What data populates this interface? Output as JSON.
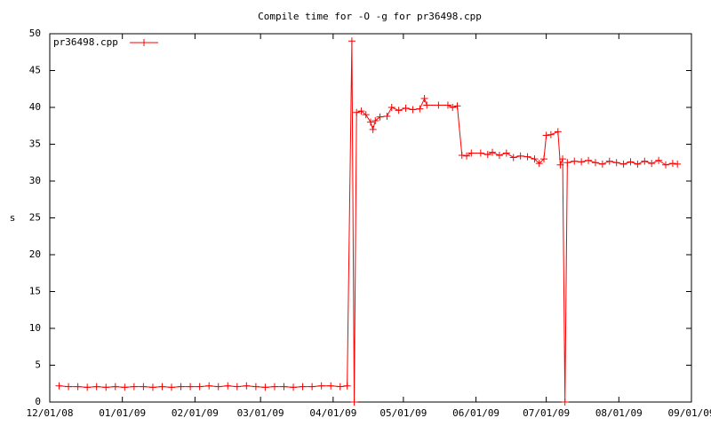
{
  "chart_data": {
    "type": "line",
    "title": "Compile time for -O -g for pr36498.cpp",
    "y_label": "s",
    "x": [
      "12/05/08",
      "12/09/08",
      "12/13/08",
      "12/17/08",
      "12/21/08",
      "12/25/08",
      "12/29/08",
      "01/02/09",
      "01/06/09",
      "01/10/09",
      "01/14/09",
      "01/18/09",
      "01/22/09",
      "01/26/09",
      "01/30/09",
      "02/03/09",
      "02/07/09",
      "02/11/09",
      "02/15/09",
      "02/19/09",
      "02/23/09",
      "02/27/09",
      "03/03/09",
      "03/07/09",
      "03/11/09",
      "03/15/09",
      "03/19/09",
      "03/23/09",
      "03/27/09",
      "03/31/09",
      "04/04/09",
      "04/07/09",
      "04/09/09",
      "04/10/09",
      "04/11/09",
      "04/13/09",
      "04/15/09",
      "04/17/09",
      "04/18/09",
      "04/19/09",
      "04/21/09",
      "04/24/09",
      "04/26/09",
      "04/29/09",
      "05/02/09",
      "05/05/09",
      "05/08/09",
      "05/10/09",
      "05/11/09",
      "05/16/09",
      "05/20/09",
      "05/22/09",
      "05/24/09",
      "05/26/09",
      "05/28/09",
      "05/30/09",
      "06/03/09",
      "06/06/09",
      "06/08/09",
      "06/11/09",
      "06/14/09",
      "06/17/09",
      "06/20/09",
      "06/23/09",
      "06/26/09",
      "06/28/09",
      "06/30/09",
      "07/01/09",
      "07/03/09",
      "07/06/09",
      "07/07/09",
      "07/08/09",
      "07/09/09",
      "07/10/09",
      "07/13/09",
      "07/16/09",
      "07/19/09",
      "07/22/09",
      "07/25/09",
      "07/28/09",
      "07/31/09",
      "08/03/09",
      "08/06/09",
      "08/09/09",
      "08/12/09",
      "08/15/09",
      "08/18/09",
      "08/21/09",
      "08/24/09",
      "08/26/09"
    ],
    "series": [
      {
        "name": "pr36498.cpp",
        "color": "#ff0000",
        "values": [
          2.2,
          2.1,
          2.1,
          2.0,
          2.1,
          2.0,
          2.1,
          2.0,
          2.1,
          2.1,
          2.0,
          2.1,
          2.0,
          2.1,
          2.1,
          2.1,
          2.2,
          2.1,
          2.2,
          2.1,
          2.2,
          2.1,
          2.0,
          2.1,
          2.1,
          2.0,
          2.1,
          2.1,
          2.2,
          2.2,
          2.1,
          2.2,
          49,
          0,
          39.3,
          39.5,
          39,
          38,
          37,
          38.2,
          38.7,
          38.8,
          40,
          39.6,
          39.9,
          39.7,
          39.8,
          41.2,
          40.3,
          40.3,
          40.3,
          40,
          40.2,
          33.5,
          33.4,
          33.8,
          33.8,
          33.6,
          33.9,
          33.5,
          33.8,
          33.2,
          33.4,
          33.3,
          33,
          32.4,
          33.0,
          36.2,
          36.3,
          36.7,
          32.2,
          33,
          0,
          32.5,
          32.7,
          32.6,
          32.8,
          32.5,
          32.3,
          32.7,
          32.5,
          32.3,
          32.6,
          32.3,
          32.7,
          32.4,
          32.8,
          32.2,
          32.4,
          32.3
        ]
      }
    ],
    "xlim": [
      "12/01/08",
      "09/01/09"
    ],
    "xticks": [
      "12/01/08",
      "01/01/09",
      "02/01/09",
      "03/01/09",
      "04/01/09",
      "05/01/09",
      "06/01/09",
      "07/01/09",
      "08/01/09",
      "09/01/09"
    ],
    "ylim": [
      0,
      50
    ],
    "yticks": [
      0,
      5,
      10,
      15,
      20,
      25,
      30,
      35,
      40,
      45,
      50
    ],
    "legend": "top-left"
  }
}
